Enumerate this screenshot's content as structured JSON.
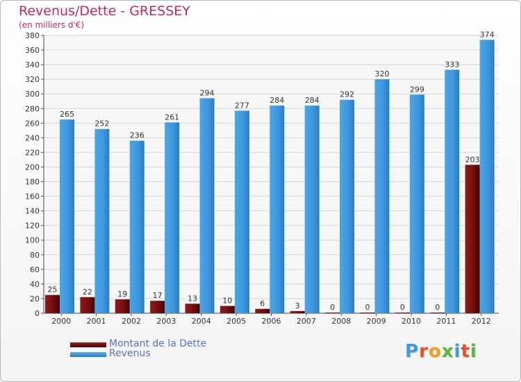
{
  "chart_data": {
    "type": "bar",
    "title": "Revenus/Dette - GRESSEY",
    "subtitle": "(en milliers d'€)",
    "categories": [
      "2000",
      "2001",
      "2002",
      "2003",
      "2004",
      "2005",
      "2006",
      "2007",
      "2008",
      "2009",
      "2010",
      "2011",
      "2012"
    ],
    "series": [
      {
        "name": "Montant de la Dette",
        "color": "#7a1010",
        "values": [
          25,
          22,
          19,
          17,
          13,
          10,
          6,
          3,
          0,
          0,
          0,
          0,
          203
        ]
      },
      {
        "name": "Revenus",
        "color": "#3d96dc",
        "values": [
          265,
          252,
          236,
          261,
          294,
          277,
          284,
          284,
          292,
          320,
          299,
          333,
          374
        ]
      }
    ],
    "ylim": [
      0,
      380
    ],
    "ytick_step": 20,
    "xlabel": "",
    "ylabel": "",
    "grid": true,
    "legend_position": "bottom-left"
  },
  "legend": {
    "items": [
      {
        "label": "Montant de la Dette",
        "color": "#6a0808"
      },
      {
        "label": "Revenus",
        "color": "#3d96dc"
      }
    ]
  },
  "brand": {
    "text": "Proxiti",
    "colors": [
      "#3d9be0",
      "#e8502a",
      "#f0a020",
      "#5cb83c",
      "#3d9be0",
      "#e8502a",
      "#5cb83c"
    ]
  }
}
